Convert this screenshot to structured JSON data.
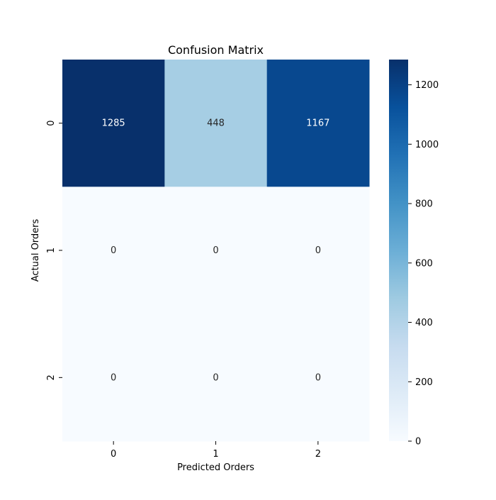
{
  "chart_data": {
    "type": "heatmap",
    "title": "Confusion Matrix",
    "xlabel": "Predicted Orders",
    "ylabel": "Actual Orders",
    "x_categories": [
      "0",
      "1",
      "2"
    ],
    "y_categories": [
      "0",
      "1",
      "2"
    ],
    "values": [
      [
        1285,
        448,
        1167
      ],
      [
        0,
        0,
        0
      ],
      [
        0,
        0,
        0
      ]
    ],
    "colormap": "Blues",
    "color_range": [
      0,
      1285
    ],
    "colorbar_ticks": [
      0,
      200,
      400,
      600,
      800,
      1000,
      1200
    ]
  }
}
